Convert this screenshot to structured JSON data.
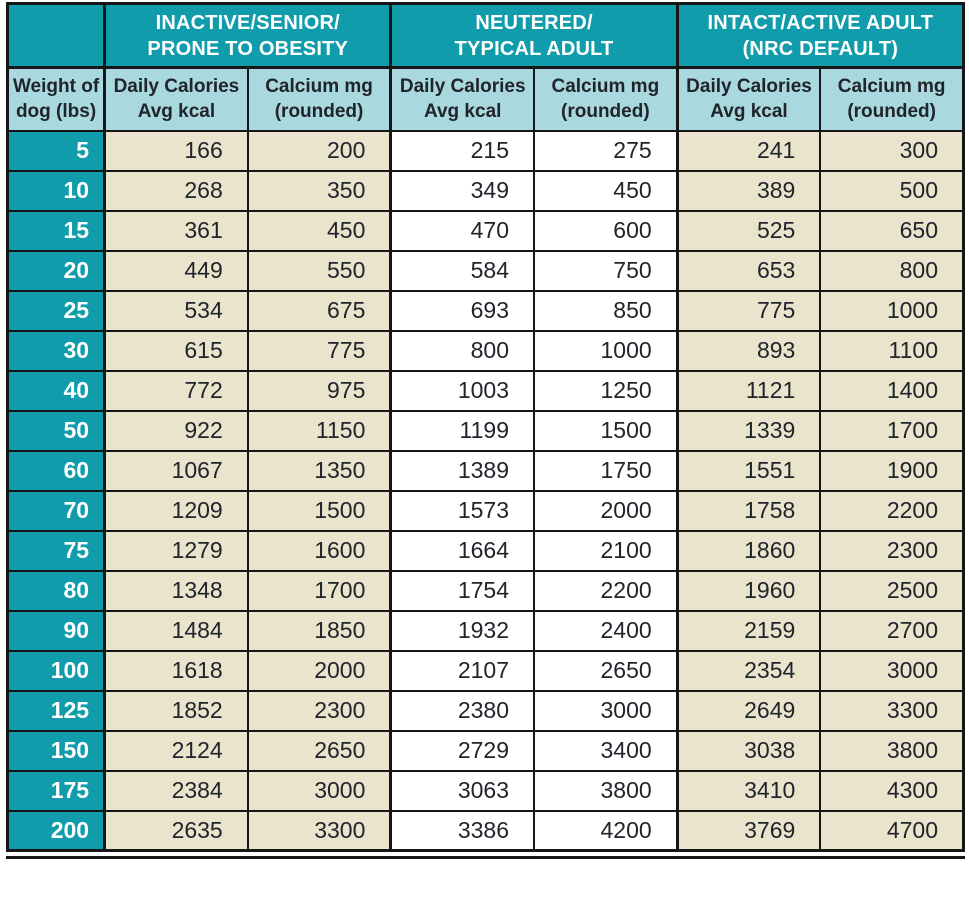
{
  "colors": {
    "teal": "#119CAC",
    "light_blue": "#A9D8DE",
    "cream": "#EAE4CD",
    "border": "#161616",
    "text_dark": "#20242B",
    "text_white": "#FFFFFF"
  },
  "chart_data": {
    "type": "table",
    "header": {
      "corner": "",
      "groups": [
        {
          "title": "INACTIVE/SENIOR/\nPRONE TO OBESITY"
        },
        {
          "title": "NEUTERED/\nTYPICAL ADULT"
        },
        {
          "title": "INTACT/ACTIVE ADULT\n(NRC DEFAULT)"
        }
      ],
      "weight_col": "Weight of\ndog (lbs)",
      "sub_cols": [
        "Daily Calories\nAvg kcal",
        "Calcium mg\n(rounded)"
      ]
    },
    "rows": [
      {
        "weight": "5",
        "cells": [
          "166",
          "200",
          "215",
          "275",
          "241",
          "300"
        ]
      },
      {
        "weight": "10",
        "cells": [
          "268",
          "350",
          "349",
          "450",
          "389",
          "500"
        ]
      },
      {
        "weight": "15",
        "cells": [
          "361",
          "450",
          "470",
          "600",
          "525",
          "650"
        ]
      },
      {
        "weight": "20",
        "cells": [
          "449",
          "550",
          "584",
          "750",
          "653",
          "800"
        ]
      },
      {
        "weight": "25",
        "cells": [
          "534",
          "675",
          "693",
          "850",
          "775",
          "1000"
        ]
      },
      {
        "weight": "30",
        "cells": [
          "615",
          "775",
          "800",
          "1000",
          "893",
          "1100"
        ]
      },
      {
        "weight": "40",
        "cells": [
          "772",
          "975",
          "1003",
          "1250",
          "1121",
          "1400"
        ]
      },
      {
        "weight": "50",
        "cells": [
          "922",
          "1150",
          "1199",
          "1500",
          "1339",
          "1700"
        ]
      },
      {
        "weight": "60",
        "cells": [
          "1067",
          "1350",
          "1389",
          "1750",
          "1551",
          "1900"
        ]
      },
      {
        "weight": "70",
        "cells": [
          "1209",
          "1500",
          "1573",
          "2000",
          "1758",
          "2200"
        ]
      },
      {
        "weight": "75",
        "cells": [
          "1279",
          "1600",
          "1664",
          "2100",
          "1860",
          "2300"
        ]
      },
      {
        "weight": "80",
        "cells": [
          "1348",
          "1700",
          "1754",
          "2200",
          "1960",
          "2500"
        ]
      },
      {
        "weight": "90",
        "cells": [
          "1484",
          "1850",
          "1932",
          "2400",
          "2159",
          "2700"
        ]
      },
      {
        "weight": "100",
        "cells": [
          "1618",
          "2000",
          "2107",
          "2650",
          "2354",
          "3000"
        ]
      },
      {
        "weight": "125",
        "cells": [
          "1852",
          "2300",
          "2380",
          "3000",
          "2649",
          "3300"
        ]
      },
      {
        "weight": "150",
        "cells": [
          "2124",
          "2650",
          "2729",
          "3400",
          "3038",
          "3800"
        ]
      },
      {
        "weight": "175",
        "cells": [
          "2384",
          "3000",
          "3063",
          "3800",
          "3410",
          "4300"
        ]
      },
      {
        "weight": "200",
        "cells": [
          "2635",
          "3300",
          "3386",
          "4200",
          "3769",
          "4700"
        ]
      }
    ]
  }
}
